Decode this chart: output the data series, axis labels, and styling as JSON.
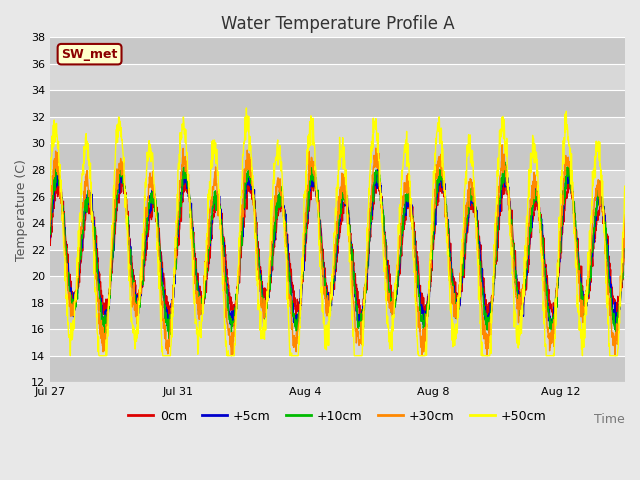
{
  "title": "Water Temperature Profile A",
  "xlabel": "Time",
  "ylabel": "Temperature (C)",
  "ylim": [
    12,
    38
  ],
  "yticks": [
    12,
    14,
    16,
    18,
    20,
    22,
    24,
    26,
    28,
    30,
    32,
    34,
    36,
    38
  ],
  "xtick_labels": [
    "Jul 27",
    "Jul 31",
    "Aug 4",
    "Aug 8",
    "Aug 12"
  ],
  "fig_bg_color": "#e8e8e8",
  "plot_bg_color": "#d4d4d4",
  "annotation_label": "SW_met",
  "annotation_bg": "#ffffcc",
  "annotation_border": "#8b0000",
  "legend_labels": [
    "0cm",
    "+5cm",
    "+10cm",
    "+30cm",
    "+50cm"
  ],
  "line_colors": [
    "#dd0000",
    "#0000cc",
    "#00bb00",
    "#ff8800",
    "#ffff00"
  ],
  "n_days": 18,
  "n_points": 2000,
  "base_temp": 22.0,
  "title_fontsize": 12,
  "label_fontsize": 9,
  "tick_fontsize": 8,
  "legend_fontsize": 9,
  "annotation_fontsize": 9
}
